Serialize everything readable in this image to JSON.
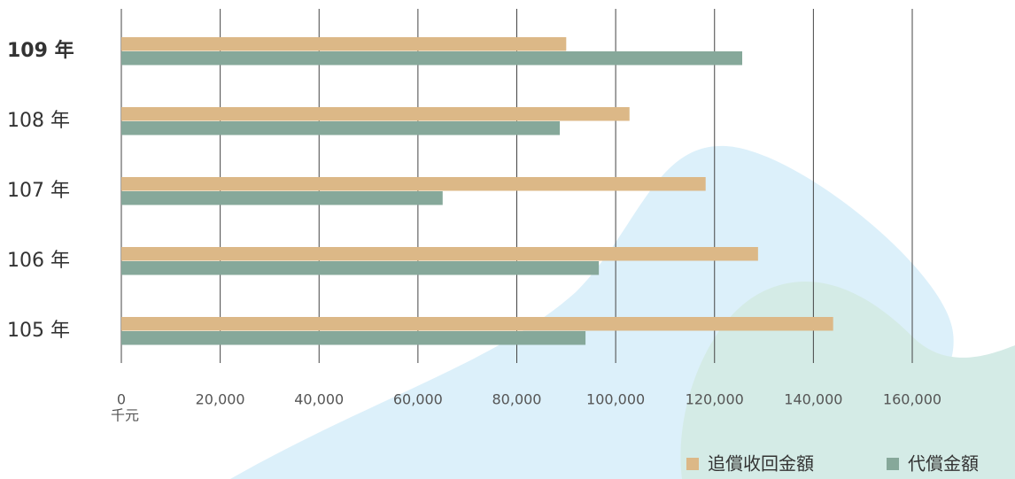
{
  "chart_data": {
    "type": "hbar",
    "categories": [
      "109 年",
      "108 年",
      "107 年",
      "106 年",
      "105 年"
    ],
    "series": [
      {
        "name": "追償收回金額",
        "color": "#dcb887",
        "values": [
          90000,
          102800,
          118200,
          128800,
          144000
        ]
      },
      {
        "name": "代償金額",
        "color": "#86a89a",
        "values": [
          125600,
          88700,
          65000,
          96600,
          93900
        ]
      }
    ],
    "xlim": [
      0,
      160000
    ],
    "xticks": [
      0,
      {
        "value": 20000,
        "label": "20,000"
      },
      {
        "value": 40000,
        "label": "40,000"
      },
      {
        "value": 60000,
        "label": "60,000"
      },
      {
        "value": 80000,
        "label": "80,000"
      },
      {
        "value": 100000,
        "label": "100,000"
      },
      {
        "value": 120000,
        "label": "120,000"
      },
      {
        "value": 140000,
        "label": "140,000"
      },
      {
        "value": 160000,
        "label": "160,000"
      }
    ],
    "x_unit": "千元",
    "grid": true
  }
}
